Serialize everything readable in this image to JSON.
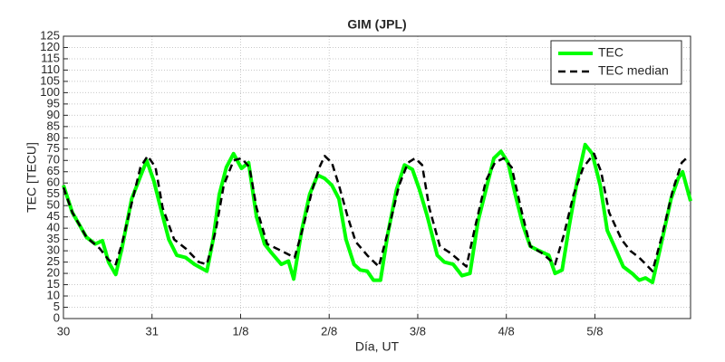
{
  "chart_data": {
    "type": "line",
    "title": "GIM (JPL)",
    "xlabel": "Día, UT",
    "ylabel": "TEC [TECU]",
    "xlim": [
      0,
      7.08
    ],
    "xticks": [
      {
        "value": 0,
        "label": "30"
      },
      {
        "value": 1,
        "label": "31"
      },
      {
        "value": 2,
        "label": "1/8"
      },
      {
        "value": 3,
        "label": "2/8"
      },
      {
        "value": 4,
        "label": "3/8"
      },
      {
        "value": 5,
        "label": "4/8"
      },
      {
        "value": 6,
        "label": "5/8"
      }
    ],
    "ylim": [
      0,
      125
    ],
    "yticks": [
      0,
      5,
      10,
      15,
      20,
      25,
      30,
      35,
      40,
      45,
      50,
      55,
      60,
      65,
      70,
      75,
      80,
      85,
      90,
      95,
      100,
      105,
      110,
      115,
      120,
      125
    ],
    "grid": true,
    "legend": "upper right",
    "series": [
      {
        "name": "TEC",
        "color": "#00ff00",
        "style": "solid",
        "x": [
          0,
          0.1,
          0.26,
          0.36,
          0.44,
          0.51,
          0.59,
          0.66,
          0.77,
          0.87,
          0.94,
          1.02,
          1.11,
          1.19,
          1.28,
          1.38,
          1.48,
          1.62,
          1.69,
          1.76,
          1.84,
          1.92,
          2.01,
          2.09,
          2.18,
          2.27,
          2.35,
          2.46,
          2.54,
          2.6,
          2.69,
          2.78,
          2.87,
          2.95,
          3.03,
          3.11,
          3.19,
          3.28,
          3.35,
          3.43,
          3.5,
          3.58,
          3.66,
          3.76,
          3.85,
          3.94,
          4.02,
          4.11,
          4.22,
          4.3,
          4.4,
          4.5,
          4.59,
          4.68,
          4.77,
          4.86,
          4.94,
          5.02,
          5.1,
          5.19,
          5.27,
          5.37,
          5.48,
          5.55,
          5.63,
          5.71,
          5.8,
          5.89,
          5.97,
          6.06,
          6.14,
          6.22,
          6.32,
          6.42,
          6.5,
          6.57,
          6.65,
          6.76,
          6.86,
          6.94,
          6.99,
          7.08
        ],
        "values": [
          59,
          47,
          36,
          33,
          34.5,
          25,
          19.5,
          31,
          53,
          63,
          70,
          61,
          47,
          35,
          28,
          27,
          24,
          21,
          35,
          55,
          67,
          73,
          66.5,
          69,
          45,
          33,
          29,
          24,
          25.5,
          17.5,
          39,
          55,
          63.5,
          62,
          59,
          53,
          35,
          24,
          21.5,
          21,
          17,
          17,
          37,
          57,
          68,
          66,
          57,
          45,
          28,
          25,
          24,
          19,
          20,
          43,
          57,
          71,
          74,
          69,
          55,
          41,
          32,
          30,
          28,
          20,
          21.5,
          41,
          61,
          77,
          73,
          59,
          39,
          32,
          23,
          20,
          17,
          18,
          16,
          35,
          53,
          62,
          65,
          52
        ]
      },
      {
        "name": "TEC median",
        "color": "#000000",
        "style": "dashed",
        "x": [
          0,
          0.1,
          0.26,
          0.41,
          0.51,
          0.59,
          0.66,
          0.77,
          0.87,
          0.95,
          1.04,
          1.12,
          1.25,
          1.38,
          1.53,
          1.62,
          1.72,
          1.81,
          1.92,
          2.01,
          2.1,
          2.18,
          2.3,
          2.46,
          2.61,
          2.71,
          2.81,
          2.89,
          2.95,
          3.03,
          3.11,
          3.21,
          3.3,
          3.43,
          3.56,
          3.68,
          3.79,
          3.89,
          3.97,
          4.05,
          4.13,
          4.25,
          4.37,
          4.55,
          4.65,
          4.77,
          4.87,
          4.97,
          5.06,
          5.17,
          5.27,
          5.4,
          5.55,
          5.65,
          5.76,
          5.87,
          5.99,
          6.07,
          6.16,
          6.3,
          6.4,
          6.5,
          6.65,
          6.76,
          6.88,
          6.98,
          7.06
        ],
        "values": [
          58,
          47,
          36,
          31,
          26,
          24,
          33,
          51,
          67,
          72,
          67,
          49,
          35,
          31,
          25,
          24,
          39,
          59,
          70,
          71,
          67,
          49,
          33,
          30,
          27,
          41,
          57,
          67,
          72,
          69,
          59,
          45,
          34,
          28,
          23,
          41,
          59,
          69,
          71,
          68,
          49,
          32,
          29,
          23,
          41,
          61,
          69,
          71,
          67,
          48,
          32,
          29,
          24,
          37,
          55,
          67,
          73,
          65,
          47,
          35,
          30,
          27,
          21,
          37,
          57,
          69,
          72
        ]
      }
    ]
  }
}
